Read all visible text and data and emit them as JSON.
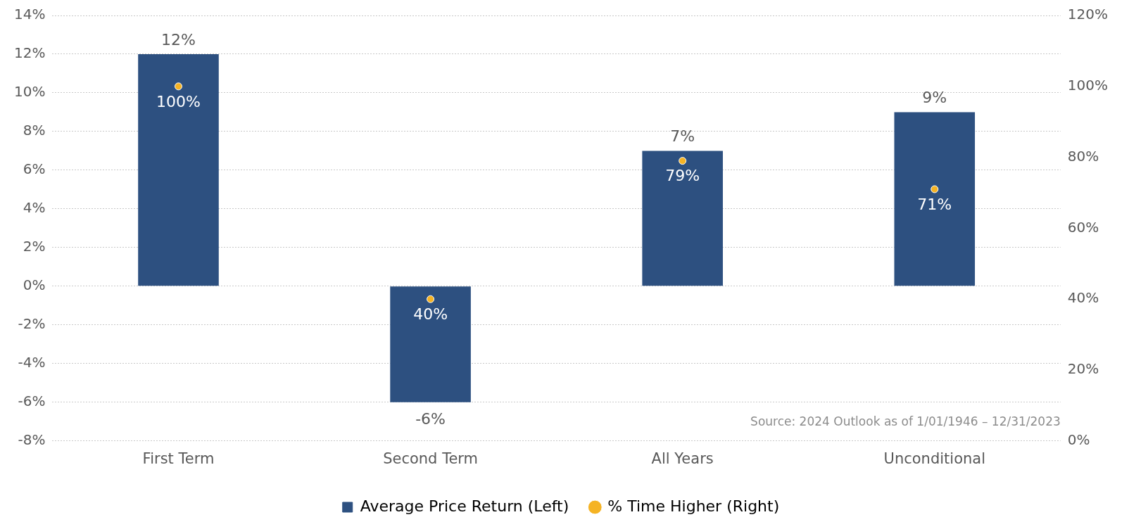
{
  "chart_data": {
    "type": "bar",
    "categories": [
      "First Term",
      "Second Term",
      "All Years",
      "Unconditional"
    ],
    "series": [
      {
        "name": "Average Price Return (Left)",
        "color": "#2d5080",
        "values": [
          12,
          -6,
          7,
          9
        ],
        "value_labels": [
          "12%",
          "-6%",
          "7%",
          "9%"
        ]
      },
      {
        "name": "% Time Higher (Right)",
        "type": "scatter",
        "axis": "y2",
        "color": "#f5b324",
        "values": [
          100,
          40,
          79,
          71
        ],
        "value_labels": [
          "100%",
          "40%",
          "79%",
          "71%"
        ]
      }
    ],
    "ylim": [
      -8,
      14
    ],
    "yticks": [
      {
        "value": -8,
        "label": "-8%"
      },
      {
        "value": -6,
        "label": "-6%"
      },
      {
        "value": -4,
        "label": "-4%"
      },
      {
        "value": -2,
        "label": "-2%"
      },
      {
        "value": 0,
        "label": "0%"
      },
      {
        "value": 2,
        "label": "2%"
      },
      {
        "value": 4,
        "label": "4%"
      },
      {
        "value": 6,
        "label": "6%"
      },
      {
        "value": 8,
        "label": "8%"
      },
      {
        "value": 10,
        "label": "10%"
      },
      {
        "value": 12,
        "label": "12%"
      },
      {
        "value": 14,
        "label": "14%"
      }
    ],
    "y2lim": [
      0,
      120
    ],
    "y2ticks": [
      {
        "value": 0,
        "label": "0%"
      },
      {
        "value": 20,
        "label": "20%"
      },
      {
        "value": 40,
        "label": "40%"
      },
      {
        "value": 60,
        "label": "60%"
      },
      {
        "value": 80,
        "label": "80%"
      },
      {
        "value": 100,
        "label": "100%"
      },
      {
        "value": 120,
        "label": "120%"
      }
    ],
    "grid": "y",
    "legend": "bottom",
    "marker": "circle",
    "annotations": [
      "Source: 2024 Outlook as of 1/01/1946 – 12/31/2023"
    ]
  }
}
